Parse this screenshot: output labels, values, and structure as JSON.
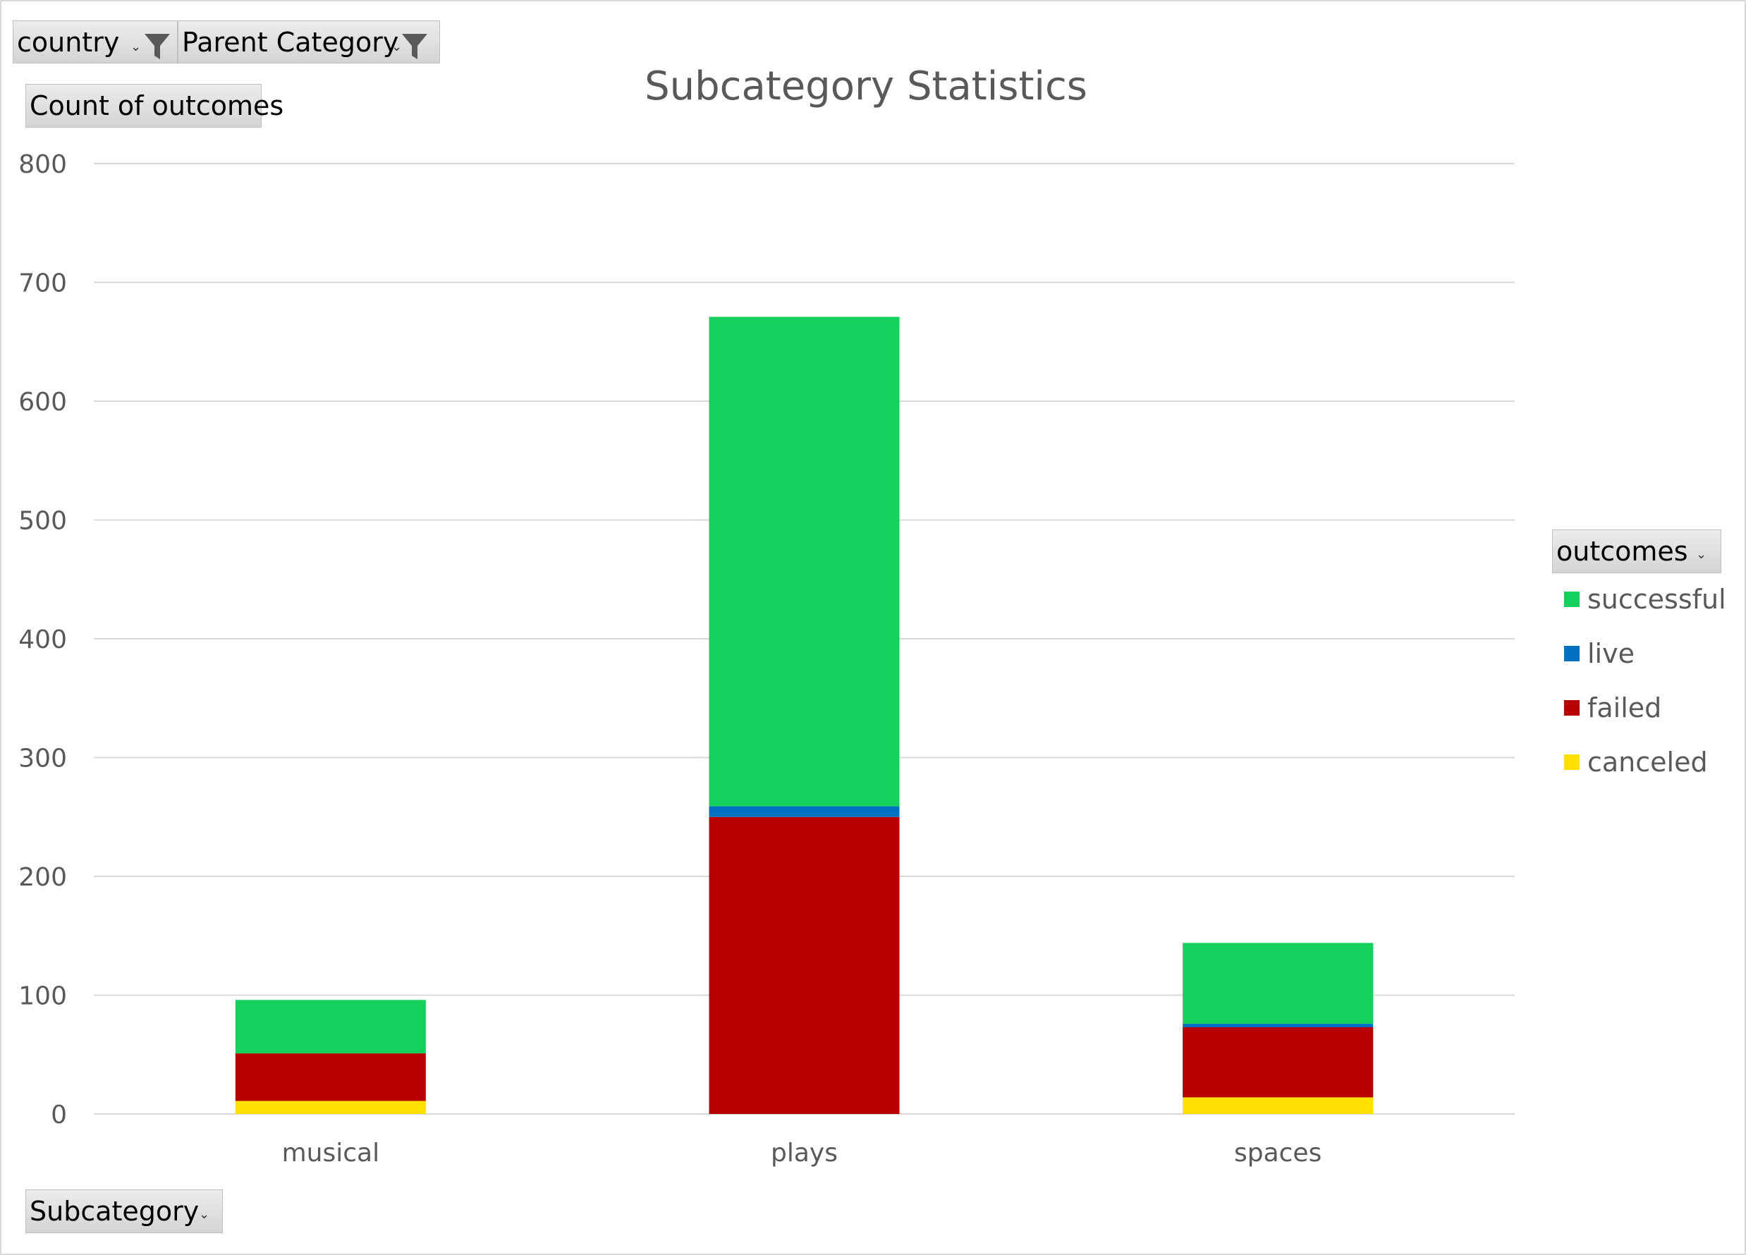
{
  "filters": {
    "country_label": "country",
    "parent_category_label": "Parent Category"
  },
  "value_field_label": "Count of outcomes",
  "axis_field_label": "Subcategory",
  "legend_field_label": "outcomes",
  "icons": {
    "filter": "funnel-icon",
    "dropdown": "chevron-down-icon"
  },
  "chart_data": {
    "type": "bar",
    "stacked": true,
    "title": "Subcategory Statistics",
    "xlabel": "",
    "ylabel": "",
    "categories": [
      "musical",
      "plays",
      "spaces"
    ],
    "ylim": [
      0,
      800
    ],
    "yticks": [
      0,
      100,
      200,
      300,
      400,
      500,
      600,
      700,
      800
    ],
    "grid": true,
    "legend_position": "right",
    "series": [
      {
        "name": "canceled",
        "color": "#FFE000",
        "values": [
          11,
          0,
          14
        ]
      },
      {
        "name": "failed",
        "color": "#B80000",
        "values": [
          40,
          250,
          59
        ]
      },
      {
        "name": "live",
        "color": "#0070C0",
        "values": [
          0,
          9,
          3
        ]
      },
      {
        "name": "successful",
        "color": "#16D05E",
        "values": [
          45,
          412,
          68
        ]
      }
    ],
    "legend_order": [
      "successful",
      "live",
      "failed",
      "canceled"
    ]
  }
}
